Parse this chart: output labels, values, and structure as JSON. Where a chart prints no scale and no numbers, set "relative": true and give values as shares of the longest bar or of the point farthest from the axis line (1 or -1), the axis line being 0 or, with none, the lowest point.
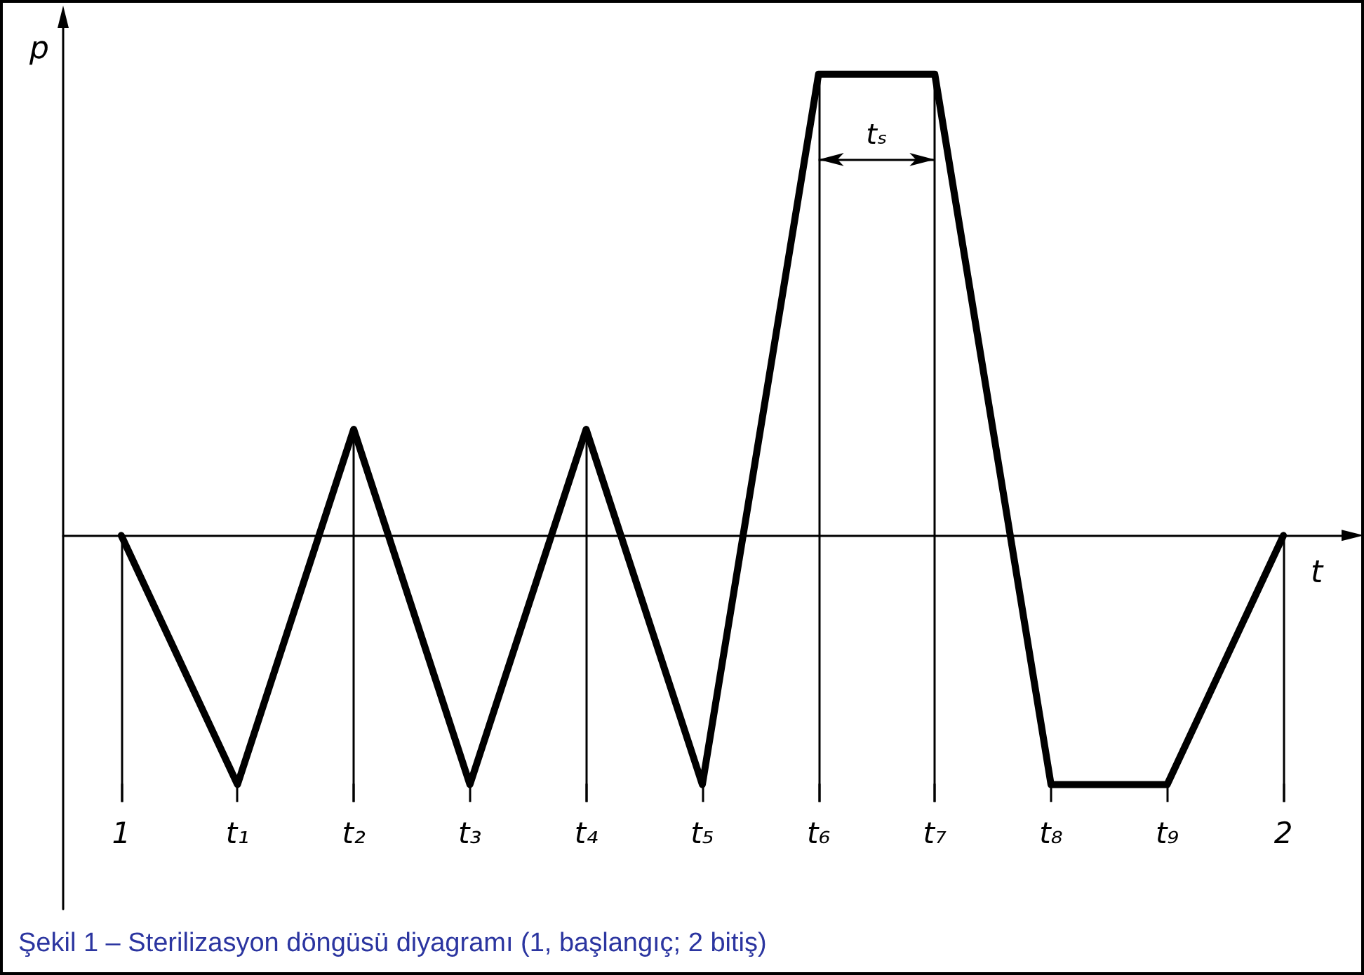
{
  "chart_data": {
    "type": "line",
    "title": "Şekil 1 – Sterilizasyon döngüsü diyagramı (1, başlangıç; 2 bitiş)",
    "xlabel": "t",
    "ylabel": "p",
    "categories": [
      "1",
      "t₁",
      "t₂",
      "t₃",
      "t₄",
      "t₅",
      "t₆",
      "t₇",
      "t₈",
      "t₉",
      "2"
    ],
    "series": [
      {
        "color": "#000000",
        "values": [
          0,
          -0.54,
          0.23,
          -0.54,
          0.23,
          -0.54,
          1,
          1,
          -0.54,
          -0.54,
          0
        ]
      }
    ],
    "relative": true,
    "annotations": [
      "tₛ"
    ],
    "ref_lines": [
      {
        "axis": "x",
        "value": "1"
      },
      {
        "axis": "x",
        "value": "t₂"
      },
      {
        "axis": "x",
        "value": "t₄"
      },
      {
        "axis": "x",
        "value": "t₆"
      },
      {
        "axis": "x",
        "value": "t₇"
      },
      {
        "axis": "x",
        "value": "2"
      }
    ],
    "marker": "none",
    "line_style": "solid"
  }
}
